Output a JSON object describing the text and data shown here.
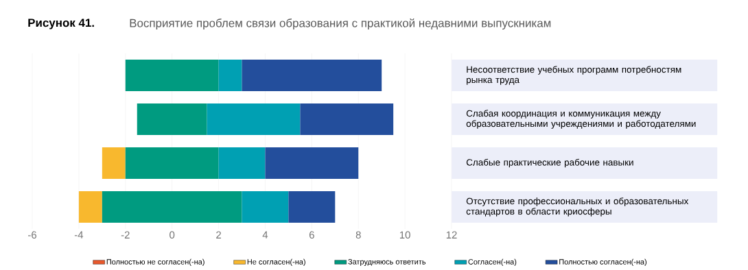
{
  "chart_data": {
    "type": "bar",
    "orientation": "horizontal",
    "title": "Рисунок 41.",
    "subtitle": "Восприятие проблем связи образования с практикой недавними выпускникам",
    "categories": [
      "Несоответствие учебных программ потребностям рынка труда",
      "Слабая координация и коммуникация между образовательными учреждениями и работодателями",
      "Слабые практические рабочие навыки",
      "Отсутствие профессиональных и образовательных стандартов в области криосферы"
    ],
    "series": [
      {
        "name": "Полностью не согласен(-на)",
        "color": "#e8592d",
        "values": [
          null,
          null,
          null,
          null
        ],
        "base": [
          null,
          null,
          null,
          null
        ]
      },
      {
        "name": "Не согласен(-на)",
        "color": "#f8b82e",
        "values": [
          null,
          null,
          1,
          1
        ],
        "base": [
          null,
          null,
          -3,
          -4
        ]
      },
      {
        "name": "Затрудняюсь ответить",
        "color": "#009b80",
        "values": [
          4,
          3,
          4,
          6
        ],
        "base": [
          -2,
          -1.5,
          -2,
          -3
        ]
      },
      {
        "name": "Согласен(-на)",
        "color": "#00a0b3",
        "values": [
          1,
          4,
          2,
          2
        ],
        "base": [
          2,
          1.5,
          2,
          3
        ]
      },
      {
        "name": "Полностью согласен(-на)",
        "color": "#234e9c",
        "values": [
          6,
          4,
          4,
          2
        ],
        "base": [
          3,
          5.5,
          4,
          5
        ]
      }
    ],
    "xlim": [
      -6,
      12
    ],
    "xticks": [
      -6,
      -4,
      -2,
      0,
      2,
      4,
      6,
      8,
      10,
      12
    ],
    "grid": "x",
    "legend": "bottom"
  }
}
